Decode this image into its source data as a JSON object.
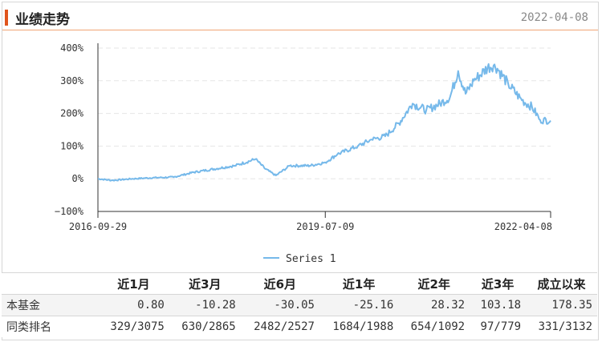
{
  "header": {
    "title": "业绩走势",
    "date": "2022-04-08"
  },
  "chart_data": {
    "type": "line",
    "y_ticks": [
      "400%",
      "300%",
      "200%",
      "100%",
      "0%",
      "−100%"
    ],
    "x_ticks": [
      "2016-09-29",
      "2019-07-09",
      "2022-04-08"
    ],
    "ylim": [
      -100,
      400
    ],
    "grid": "dashed horizontal",
    "legend": "bottom",
    "color": "#76b9ea",
    "series": [
      {
        "name": "Series 1",
        "x": [
          "2016-09-29",
          "2016-12-01",
          "2017-03-01",
          "2017-06-01",
          "2017-09-01",
          "2017-12-01",
          "2018-03-01",
          "2018-06-01",
          "2018-09-01",
          "2018-10-15",
          "2018-12-01",
          "2019-02-01",
          "2019-05-01",
          "2019-07-09",
          "2019-09-01",
          "2019-12-01",
          "2020-02-01",
          "2020-04-01",
          "2020-06-01",
          "2020-08-01",
          "2020-10-01",
          "2020-12-01",
          "2021-01-15",
          "2021-02-20",
          "2021-03-25",
          "2021-05-01",
          "2021-07-01",
          "2021-08-01",
          "2021-10-01",
          "2021-12-01",
          "2022-01-15",
          "2022-02-20",
          "2022-04-08"
        ],
        "values": [
          0,
          -5,
          0,
          3,
          5,
          20,
          30,
          40,
          60,
          30,
          10,
          40,
          40,
          50,
          75,
          100,
          120,
          130,
          170,
          230,
          210,
          230,
          250,
          330,
          260,
          300,
          340,
          350,
          290,
          240,
          220,
          180,
          178
        ]
      }
    ]
  },
  "table": {
    "headers": [
      "",
      "近1月",
      "近3月",
      "近6月",
      "近1年",
      "近2年",
      "近3年",
      "成立以来"
    ],
    "rows": [
      {
        "label": "本基金",
        "cells": [
          "0.80",
          "-10.28",
          "-30.05",
          "-25.16",
          "28.32",
          "103.18",
          "178.35"
        ]
      },
      {
        "label": "同类排名",
        "cells": [
          "329/3075",
          "630/2865",
          "2482/2527",
          "1684/1988",
          "654/1092",
          "97/779",
          "331/3132"
        ]
      }
    ]
  }
}
